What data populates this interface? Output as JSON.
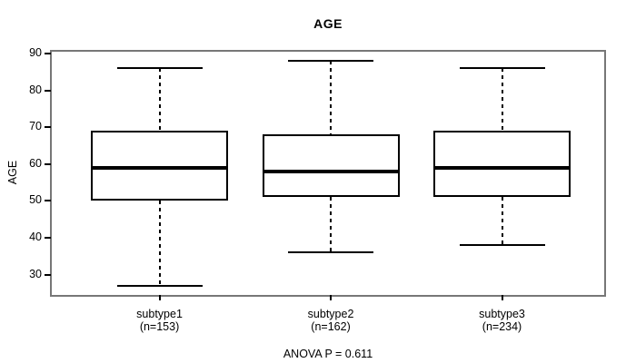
{
  "title": "AGE",
  "y_axis": {
    "label": "AGE"
  },
  "annotation": "ANOVA P = 0.611",
  "chart_data": {
    "type": "boxplot",
    "title": "AGE",
    "xlabel": "",
    "ylabel": "AGE",
    "ylim": [
      24.5,
      90.5
    ],
    "yticks": [
      30,
      40,
      50,
      60,
      70,
      80,
      90
    ],
    "grid": false,
    "categories": [
      "subtype1",
      "subtype2",
      "subtype3"
    ],
    "category_sublabels": [
      "(n=153)",
      "(n=162)",
      "(n=234)"
    ],
    "series": [
      {
        "name": "subtype1",
        "n": 153,
        "whisker_low": 27,
        "q1": 50,
        "median": 59,
        "q3": 69,
        "whisker_high": 86
      },
      {
        "name": "subtype2",
        "n": 162,
        "whisker_low": 36,
        "q1": 51,
        "median": 58,
        "q3": 68,
        "whisker_high": 88
      },
      {
        "name": "subtype3",
        "n": 234,
        "whisker_low": 38,
        "q1": 51,
        "median": 59,
        "q3": 69,
        "whisker_high": 86
      }
    ],
    "annotation": "ANOVA P = 0.611",
    "colors": {
      "line": "#000000",
      "box_fill": "#ffffff",
      "background": "#ffffff",
      "border": "#777777"
    }
  }
}
